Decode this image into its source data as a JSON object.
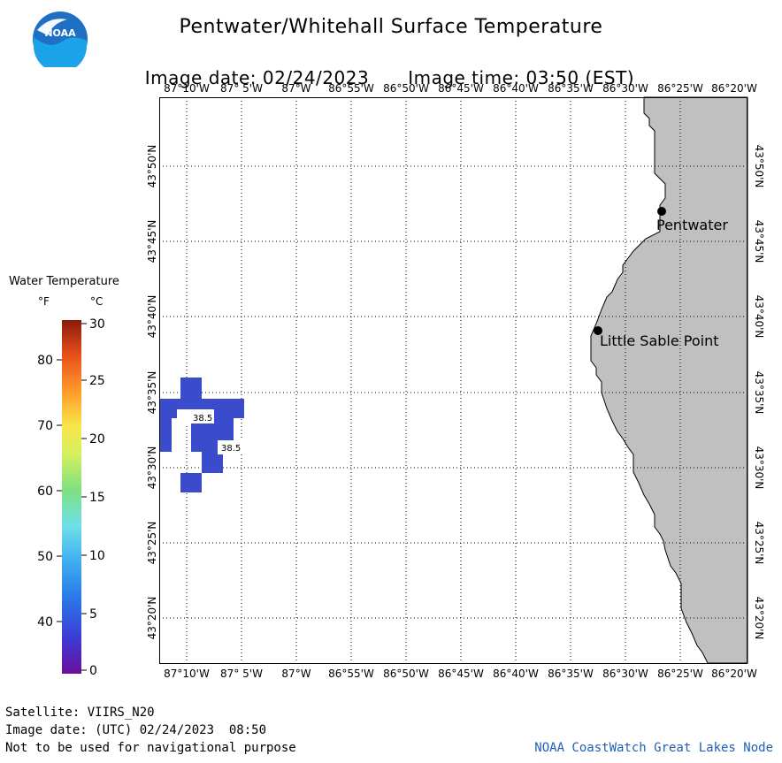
{
  "header": {
    "title": "Pentwater/Whitehall Surface Temperature",
    "image_date_label": "Image date: 02/24/2023",
    "image_time_label": "Image time: 03:50 (EST)"
  },
  "logo": {
    "text": "NOAA"
  },
  "map": {
    "lon_labels": [
      "87°10'W",
      "87° 5'W",
      "87°W",
      "86°55'W",
      "86°50'W",
      "86°45'W",
      "86°40'W",
      "86°35'W",
      "86°30'W",
      "86°25'W",
      "86°20'W"
    ],
    "lat_labels": [
      "43°50'N",
      "43°45'N",
      "43°40'N",
      "43°35'N",
      "43°30'N",
      "43°25'N",
      "43°20'N"
    ],
    "cities": [
      {
        "name": "Pentwater"
      },
      {
        "name": "Little Sable Point"
      }
    ],
    "temp_labels": [
      "38.5",
      "38.5"
    ],
    "land_color": "#c0c0c0",
    "water_pixel_color": "#3a4bcc"
  },
  "legend": {
    "title": "Water Temperature",
    "unit_f": "°F",
    "unit_c": "°C",
    "f_ticks": [
      "80",
      "70",
      "60",
      "50",
      "40"
    ],
    "c_ticks": [
      "30",
      "25",
      "20",
      "15",
      "10",
      "5",
      "0"
    ]
  },
  "footer": {
    "satellite": "Satellite: VIIRS_N20",
    "utc_date": "Image date: (UTC) 02/24/2023  08:50",
    "disclaimer": "Not to be used for navigational purpose",
    "credit": "NOAA CoastWatch Great Lakes Node"
  }
}
